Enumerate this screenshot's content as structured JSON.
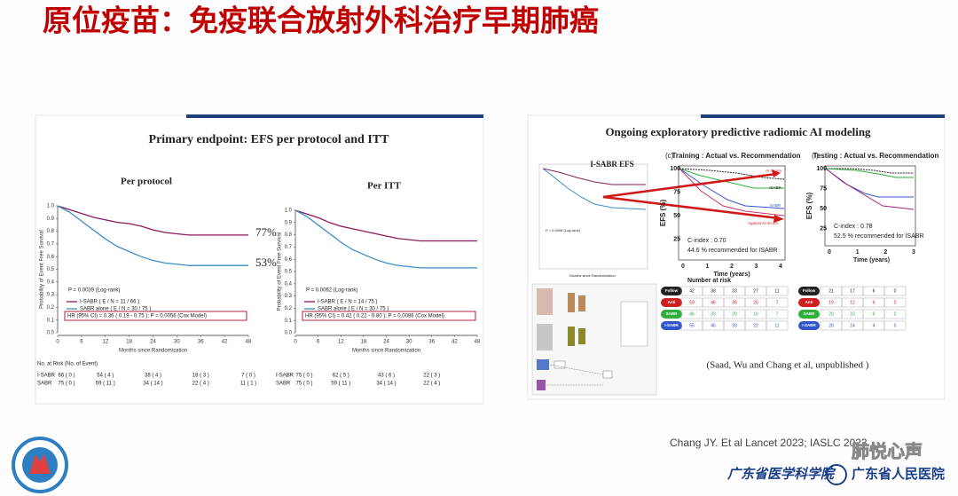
{
  "header": {
    "title": "原位疫苗：免疫联合放射外科治疗早期肺癌"
  },
  "left_panel": {
    "title": "Primary endpoint: EFS per protocol and ITT"
  },
  "chart_data": [
    {
      "type": "line",
      "title": "Per protocol",
      "xlabel": "Months since Randomization",
      "ylabel": "Probability of Event Free Survival",
      "x": [
        0,
        3,
        6,
        9,
        12,
        15,
        18,
        21,
        24,
        27,
        30,
        33,
        36,
        39,
        42,
        45,
        48
      ],
      "series": [
        {
          "name": "I-SABR  ( E / N = 11 / 66 )",
          "color": "#8b1a5c",
          "values": [
            1.0,
            0.97,
            0.94,
            0.91,
            0.89,
            0.87,
            0.86,
            0.84,
            0.81,
            0.79,
            0.78,
            0.77,
            0.77,
            0.77,
            0.77,
            0.77,
            0.77
          ]
        },
        {
          "name": "SABR alone  ( E / N = 30 / 75 )",
          "color": "#3a8fc4",
          "values": [
            1.0,
            0.95,
            0.88,
            0.81,
            0.74,
            0.68,
            0.64,
            0.6,
            0.57,
            0.55,
            0.54,
            0.53,
            0.53,
            0.53,
            0.53,
            0.53,
            0.53
          ]
        }
      ],
      "xlim": [
        0,
        48
      ],
      "ylim": [
        0,
        1
      ],
      "xticks": [
        0,
        6,
        12,
        18,
        24,
        30,
        36,
        42,
        48
      ],
      "yticks": [
        {
          "value": 0,
          "label": "0.0"
        },
        0.1,
        0.2,
        0.3,
        0.4,
        0.5,
        0.6,
        0.7,
        0.8,
        0.9,
        {
          "value": 1,
          "label": "1.0"
        }
      ],
      "annotations": [
        "77%",
        "53%"
      ],
      "p_text": "P = 0.0039 (Log-rank)",
      "hr_text": "HR (95% CI) = 0.36 ( 0.19 - 0.75 ); P = 0.0056  (Cox Model)",
      "risk_table": {
        "title": "No. at Risk (No. of Event)",
        "rows": [
          {
            "label": "I-SABR",
            "cells": [
              "66 ( 0 )",
              "54 ( 4 )",
              "38 ( 4 )",
              "18 ( 3 )",
              "7 ( 0 )"
            ]
          },
          {
            "label": "SABR",
            "cells": [
              "75 ( 0 )",
              "59 ( 11 )",
              "34 ( 14 )",
              "22 ( 4 )",
              "11 ( 1 )"
            ]
          }
        ]
      }
    },
    {
      "type": "line",
      "title": "Per ITT",
      "xlabel": "Months since Randomization",
      "ylabel": "Probability of Event Free Survival",
      "x": [
        0,
        3,
        6,
        9,
        12,
        15,
        18,
        21,
        24,
        27,
        30,
        33,
        36,
        39,
        42,
        45,
        48
      ],
      "series": [
        {
          "name": "I-SABR  ( E / N = 14 / 75 )",
          "color": "#8b1a5c",
          "values": [
            1.0,
            0.97,
            0.94,
            0.9,
            0.87,
            0.85,
            0.83,
            0.81,
            0.79,
            0.77,
            0.76,
            0.75,
            0.75,
            0.75,
            0.75,
            0.75,
            0.75
          ]
        },
        {
          "name": "SABR alone  ( E / N = 30 / 75 )",
          "color": "#3a8fc4",
          "values": [
            1.0,
            0.95,
            0.88,
            0.81,
            0.74,
            0.68,
            0.64,
            0.6,
            0.57,
            0.55,
            0.54,
            0.53,
            0.53,
            0.53,
            0.53,
            0.53,
            0.53
          ]
        }
      ],
      "xlim": [
        0,
        48
      ],
      "ylim": [
        0,
        1
      ],
      "xticks": [
        0,
        6,
        12,
        18,
        24,
        30,
        36,
        42,
        48
      ],
      "yticks": [
        {
          "value": 0,
          "label": "0.0"
        },
        0.1,
        0.2,
        0.3,
        0.4,
        0.5,
        0.6,
        0.7,
        0.8,
        0.9,
        {
          "value": 1,
          "label": "1.0"
        }
      ],
      "p_text": "P = 0.0062 (Log-rank)",
      "hr_text": "HR (95% CI) = 0.42 ( 0.22 - 0.80 ); P = 0.0086 (Cox Model)",
      "risk_table": {
        "rows": [
          {
            "label": "I-SABR",
            "cells": [
              "75 ( 0 )",
              "62 ( 5 )",
              "43 ( 6 )",
              "22 ( 3 )"
            ]
          },
          {
            "label": "SABR",
            "cells": [
              "75 ( 0 )",
              "59 ( 11 )",
              "34 ( 14 )",
              "22 ( 4 )"
            ]
          }
        ]
      }
    }
  ],
  "right_panel": {
    "title": "Ongoing exploratory predictive radiomic AI modeling",
    "mini_title": "I-SABR EFS",
    "mini_p": "P = 0.0008 (Log-rank)",
    "mini_xlabel": "Months since Randomization",
    "training": {
      "tag": "(c)",
      "title": "Training : Actual vs. Recommendation",
      "xticks": [
        0,
        1,
        2,
        3,
        4
      ],
      "yticks": [
        100,
        75,
        50,
        25
      ],
      "xlabel": "Time (years)",
      "ylabel": "EFS (%)",
      "c_index": "C-index : 0.70",
      "note": "44.6 % recommended for ISABR",
      "labels": [
        "AI recom",
        "ISABR",
        "SABR",
        "Against AI recom"
      ],
      "table_title": "Number at risk",
      "rows": [
        {
          "label": "Follow",
          "cells": [
            "42",
            "38",
            "33",
            "27",
            "11"
          ]
        },
        {
          "label": "Anti",
          "cells": [
            "59",
            "46",
            "38",
            "26",
            "7"
          ]
        },
        {
          "label": "SABR",
          "cells": [
            "46",
            "39",
            "29",
            "16",
            "7"
          ]
        },
        {
          "label": "I-SABR",
          "cells": [
            "55",
            "46",
            "39",
            "22",
            "11"
          ]
        }
      ]
    },
    "testing": {
      "tag": "(f)",
      "title": "Testing : Actual vs. Recommendation",
      "xticks": [
        0,
        1,
        2,
        3
      ],
      "yticks": [
        100,
        75,
        50,
        25
      ],
      "xlabel": "Time (years)",
      "ylabel": "EFS (%)",
      "c_index": "C-index : 0.78",
      "note": "52.5 % recommended for ISABR",
      "rows": [
        {
          "label": "Follow",
          "cells": [
            "21",
            "17",
            "6",
            "0"
          ]
        },
        {
          "label": "Anti",
          "cells": [
            "19",
            "12",
            "6",
            "0"
          ]
        },
        {
          "label": "SABR",
          "cells": [
            "20",
            "16",
            "6",
            "0"
          ]
        },
        {
          "label": "I-SABR",
          "cells": [
            "28",
            "14",
            "4",
            "0"
          ]
        }
      ]
    },
    "citation": "(Saad, Wu and Chang et al, unpublished )"
  },
  "footer": {
    "reference": "Chang JY. Et al Lancet 2023; IASLC 2023",
    "org1": "广东省医学科学院",
    "org2": "广东省人民医院",
    "watermark": "肺悦心声"
  }
}
